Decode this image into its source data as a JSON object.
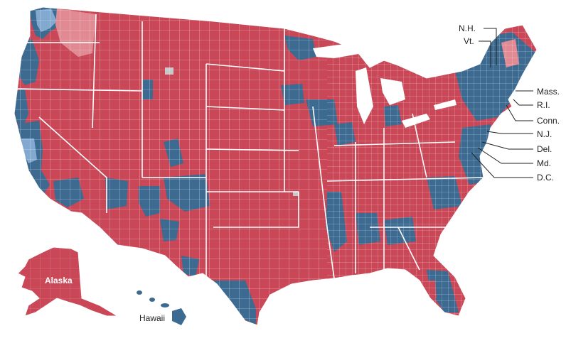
{
  "colors": {
    "background": "#ffffff",
    "republican": "#c94756",
    "republican_light": "#e28a94",
    "democrat": "#3d6a91",
    "democrat_light": "#82a9cf",
    "undecided": "#c8c8c8",
    "border": "#ffffff"
  },
  "insets": {
    "alaska": "Alaska",
    "hawaii": "Hawaii"
  },
  "state_callouts": [
    {
      "id": "nh",
      "label": "N.H."
    },
    {
      "id": "vt",
      "label": "Vt."
    },
    {
      "id": "mass",
      "label": "Mass."
    },
    {
      "id": "ri",
      "label": "R.I."
    },
    {
      "id": "conn",
      "label": "Conn."
    },
    {
      "id": "nj",
      "label": "N.J."
    },
    {
      "id": "del",
      "label": "Del."
    },
    {
      "id": "md",
      "label": "Md."
    },
    {
      "id": "dc",
      "label": "D.C."
    }
  ]
}
